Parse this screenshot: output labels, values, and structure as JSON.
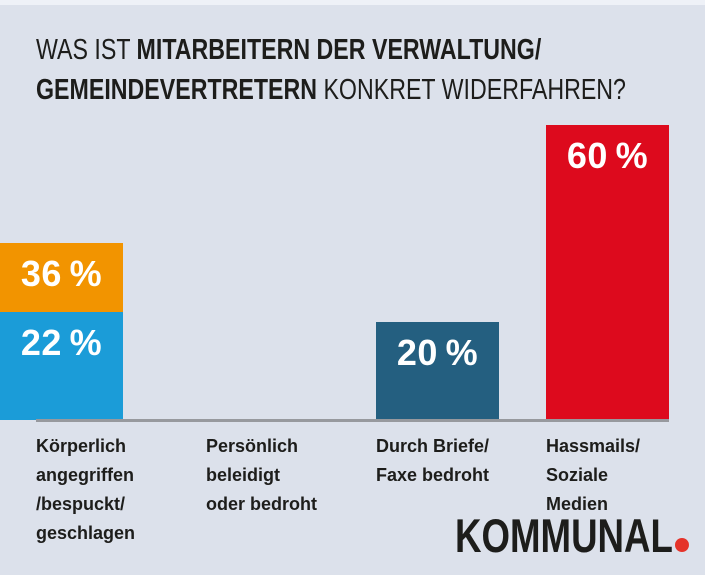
{
  "colors": {
    "background": "#dce1eb",
    "top_strip": "#eef1f7",
    "baseline": "#97999e",
    "text": "#1d1d1b",
    "percent_text": "#ffffff",
    "logo_dot": "#e5332a"
  },
  "title": {
    "line1_regular": "WAS IST ",
    "line1_bold": "MITARBEITERN DER VERWALTUNG/",
    "line2_bold": "GEMEINDEVERTRETERN",
    "line2_regular": " KONKRET WIDERFAHREN?"
  },
  "chart_data": {
    "type": "bar",
    "title": "WAS IST MITARBEITERN DER VERWALTUNG/GEMEINDEVERTRETERN KONKRET WIDERFAHREN?",
    "categories": [
      "Körperlich angegriffen /bespuckt/ geschlagen",
      "Persönlich beleidigt oder bedroht",
      "Durch Briefe/ Faxe bedroht",
      "Hassmails/ Soziale Medien"
    ],
    "values": [
      20,
      60,
      36,
      22
    ],
    "unit": "%",
    "ylim": [
      0,
      65
    ],
    "grid": false,
    "legend": "none",
    "bar_colors": [
      "#245f80",
      "#dd0a1d",
      "#f29400",
      "#1b9cd8"
    ]
  },
  "bars": [
    {
      "value": 20,
      "value_label": "20 %",
      "color": "#245f80",
      "label_lines": [
        "Körperlich",
        "angegriffen",
        "/bespuckt/",
        "geschlagen"
      ]
    },
    {
      "value": 60,
      "value_label": "60 %",
      "color": "#dd0a1d",
      "label_lines": [
        "Persönlich",
        "beleidigt",
        "oder bedroht"
      ]
    },
    {
      "value": 36,
      "value_label": "36 %",
      "color": "#f29400",
      "label_lines": [
        "Durch Briefe/",
        "Faxe bedroht"
      ]
    },
    {
      "value": 22,
      "value_label": "22 %",
      "color": "#1b9cd8",
      "label_lines": [
        "Hassmails/",
        "Soziale",
        "Medien"
      ]
    }
  ],
  "logo": {
    "text": "KOMMUNAL"
  }
}
